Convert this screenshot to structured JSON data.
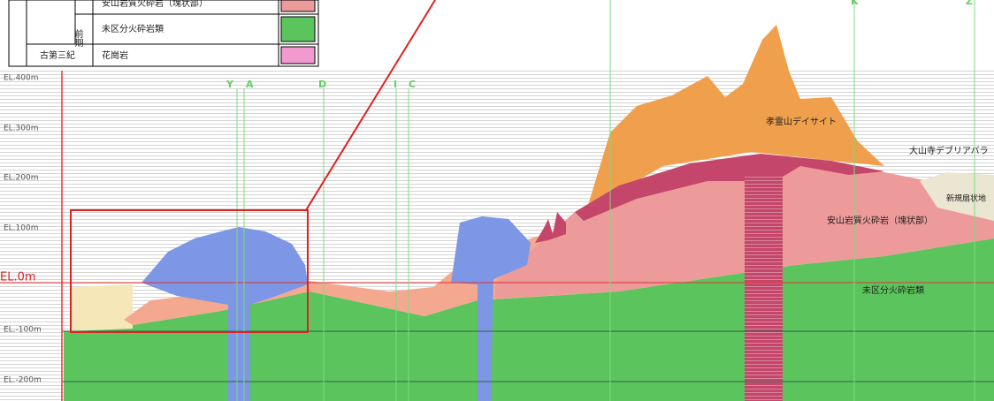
{
  "legend": {
    "rows": [
      {
        "label": "安山岩質火砕岩（塊状部）"
      },
      {
        "period": "前期",
        "label": "未区分火砕岩類"
      },
      {
        "era": "古第三紀",
        "label": "花崗岩"
      }
    ]
  },
  "elevations": [
    "EL.400m",
    "EL.300m",
    "EL.200m",
    "EL.100m",
    "EL.0m",
    "EL.-100m",
    "EL.-200m"
  ],
  "section_lines": [
    "Y",
    "A",
    "D",
    "I",
    "C",
    "K",
    "Z"
  ],
  "labels": {
    "dacite": "孝霊山デイサイト",
    "debris": "大山寺デブリアバラ",
    "fan": "新規扇状地",
    "andesite": "安山岩質火砕岩（塊状部）",
    "undivided": "未区分火砕岩類"
  }
}
